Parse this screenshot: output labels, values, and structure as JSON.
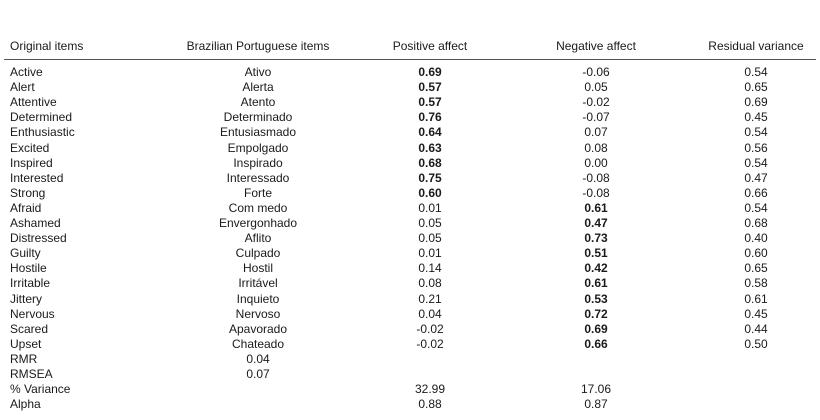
{
  "table": {
    "header": [
      "Original items",
      "Brazilian Portuguese items",
      "Positive affect",
      "Negative affect",
      "Residual variance"
    ],
    "rows": [
      [
        "Active",
        "Ativo",
        "0.69",
        "-0.06",
        "0.54"
      ],
      [
        "Alert",
        "Alerta",
        "0.57",
        "0.05",
        "0.65"
      ],
      [
        "Attentive",
        "Atento",
        "0.57",
        "-0.02",
        "0.69"
      ],
      [
        "Determined",
        "Determinado",
        "0.76",
        "-0.07",
        "0.45"
      ],
      [
        "Enthusiastic",
        "Entusiasmado",
        "0.64",
        "0.07",
        "0.54"
      ],
      [
        "Excited",
        "Empolgado",
        "0.63",
        "0.08",
        "0.56"
      ],
      [
        "Inspired",
        "Inspirado",
        "0.68",
        "0.00",
        "0.54"
      ],
      [
        "Interested",
        "Interessado",
        "0.75",
        "-0.08",
        "0.47"
      ],
      [
        "Strong",
        "Forte",
        "0.60",
        "-0.08",
        "0.66"
      ],
      [
        "Afraid",
        "Com medo",
        "0.01",
        "0.61",
        "0.54"
      ],
      [
        "Ashamed",
        "Envergonhado",
        "0.05",
        "0.47",
        "0.68"
      ],
      [
        "Distressed",
        "Aflito",
        "0.05",
        "0.73",
        "0.40"
      ],
      [
        "Guilty",
        "Culpado",
        "0.01",
        "0.51",
        "0.60"
      ],
      [
        "Hostile",
        "Hostil",
        "0.14",
        "0.42",
        "0.65"
      ],
      [
        "Irritable",
        "Irritável",
        "0.08",
        "0.61",
        "0.58"
      ],
      [
        "Jittery",
        "Inquieto",
        "0.21",
        "0.53",
        "0.61"
      ],
      [
        "Nervous",
        "Nervoso",
        "0.04",
        "0.72",
        "0.45"
      ],
      [
        "Scared",
        "Apavorado",
        "-0.02",
        "0.69",
        "0.44"
      ],
      [
        "Upset",
        "Chateado",
        "-0.02",
        "0.66",
        "0.50"
      ],
      [
        "RMR",
        "0.04"
      ],
      [
        "RMSEA",
        "0.07"
      ],
      [
        "% Variance",
        null,
        "32.99",
        "17.06"
      ],
      [
        "Alpha",
        null,
        "0.88",
        "0.87"
      ]
    ]
  }
}
